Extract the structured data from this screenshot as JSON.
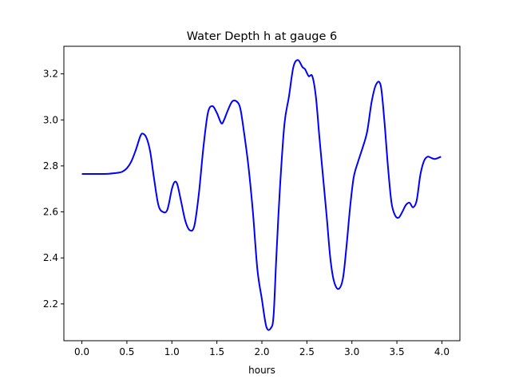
{
  "chart_data": {
    "type": "line",
    "title": "Water Depth h at gauge 6",
    "xlabel": "hours",
    "ylabel": "",
    "xlim": [
      -0.2,
      4.2
    ],
    "ylim": [
      2.04,
      3.32
    ],
    "xticks": [
      0.0,
      0.5,
      1.0,
      1.5,
      2.0,
      2.5,
      3.0,
      3.5,
      4.0
    ],
    "xtick_labels": [
      "0.0",
      "0.5",
      "1.0",
      "1.5",
      "2.0",
      "2.5",
      "3.0",
      "3.5",
      "4.0"
    ],
    "yticks": [
      2.2,
      2.4,
      2.6,
      2.8,
      3.0,
      3.2
    ],
    "ytick_labels": [
      "2.2",
      "2.4",
      "2.6",
      "2.8",
      "3.0",
      "3.2"
    ],
    "grid": false,
    "line_color": "#0000ff",
    "series": [
      {
        "name": "",
        "x": [
          0.0,
          0.1,
          0.2,
          0.3,
          0.4,
          0.45,
          0.5,
          0.55,
          0.6,
          0.65,
          0.68,
          0.72,
          0.76,
          0.8,
          0.85,
          0.9,
          0.95,
          1.0,
          1.03,
          1.06,
          1.1,
          1.15,
          1.2,
          1.25,
          1.3,
          1.35,
          1.4,
          1.45,
          1.5,
          1.55,
          1.58,
          1.62,
          1.67,
          1.72,
          1.76,
          1.8,
          1.85,
          1.9,
          1.95,
          2.0,
          2.05,
          2.1,
          2.13,
          2.16,
          2.2,
          2.25,
          2.3,
          2.35,
          2.4,
          2.45,
          2.48,
          2.52,
          2.56,
          2.6,
          2.64,
          2.68,
          2.72,
          2.76,
          2.8,
          2.85,
          2.9,
          2.94,
          2.98,
          3.02,
          3.07,
          3.12,
          3.17,
          3.22,
          3.27,
          3.32,
          3.36,
          3.4,
          3.44,
          3.48,
          3.52,
          3.56,
          3.6,
          3.64,
          3.68,
          3.72,
          3.76,
          3.8,
          3.84,
          3.88,
          3.92,
          3.96,
          3.99
        ],
        "y": [
          2.765,
          2.765,
          2.765,
          2.766,
          2.77,
          2.775,
          2.79,
          2.82,
          2.87,
          2.93,
          2.94,
          2.92,
          2.86,
          2.75,
          2.63,
          2.6,
          2.61,
          2.7,
          2.73,
          2.72,
          2.65,
          2.56,
          2.52,
          2.54,
          2.68,
          2.88,
          3.03,
          3.06,
          3.03,
          2.985,
          3.0,
          3.04,
          3.08,
          3.08,
          3.05,
          2.95,
          2.8,
          2.6,
          2.35,
          2.22,
          2.1,
          2.095,
          2.15,
          2.4,
          2.7,
          2.98,
          3.1,
          3.23,
          3.26,
          3.23,
          3.22,
          3.19,
          3.19,
          3.1,
          2.92,
          2.75,
          2.58,
          2.4,
          2.3,
          2.265,
          2.31,
          2.45,
          2.62,
          2.75,
          2.82,
          2.88,
          2.95,
          3.08,
          3.155,
          3.15,
          3.0,
          2.8,
          2.64,
          2.585,
          2.575,
          2.6,
          2.63,
          2.64,
          2.62,
          2.65,
          2.76,
          2.82,
          2.84,
          2.835,
          2.83,
          2.835,
          2.84
        ]
      }
    ]
  }
}
